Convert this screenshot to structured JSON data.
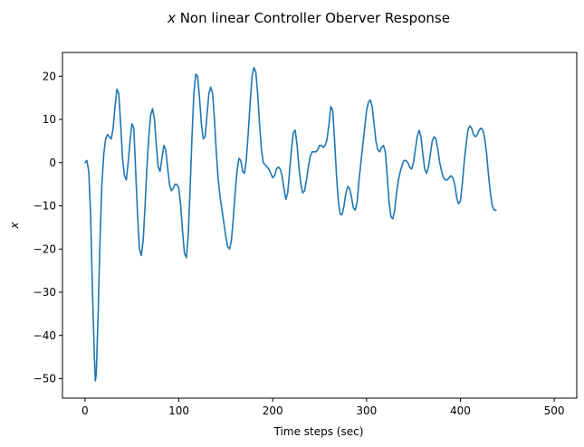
{
  "chart_data": {
    "type": "line",
    "title_var": "x",
    "title_rest": " Non linear Controller Oberver Response",
    "xlabel": "Time steps (sec)",
    "ylabel": "x",
    "xlim": [
      -24,
      524
    ],
    "ylim": [
      -54.5,
      25.5
    ],
    "xticks": [
      0,
      100,
      200,
      300,
      400,
      500
    ],
    "yticks": [
      -50,
      -40,
      -30,
      -20,
      -10,
      0,
      10,
      20
    ],
    "grid": false,
    "line_color": "#1f77b4",
    "series": [
      {
        "points": [
          [
            0,
            0
          ],
          [
            2,
            0.5
          ],
          [
            4,
            -2
          ],
          [
            6,
            -12
          ],
          [
            8,
            -30
          ],
          [
            10,
            -45
          ],
          [
            11,
            -50.5
          ],
          [
            12,
            -49
          ],
          [
            14,
            -35
          ],
          [
            16,
            -18
          ],
          [
            18,
            -5
          ],
          [
            20,
            2
          ],
          [
            22,
            5.5
          ],
          [
            24,
            6.5
          ],
          [
            26,
            6
          ],
          [
            28,
            5.5
          ],
          [
            30,
            8
          ],
          [
            32,
            13
          ],
          [
            34,
            17
          ],
          [
            36,
            16
          ],
          [
            38,
            9
          ],
          [
            40,
            1
          ],
          [
            42,
            -3
          ],
          [
            44,
            -4
          ],
          [
            46,
            0
          ],
          [
            48,
            5
          ],
          [
            50,
            9
          ],
          [
            52,
            8
          ],
          [
            54,
            -2
          ],
          [
            56,
            -12
          ],
          [
            58,
            -20
          ],
          [
            60,
            -21.5
          ],
          [
            62,
            -18
          ],
          [
            64,
            -10
          ],
          [
            66,
            -1
          ],
          [
            68,
            6
          ],
          [
            70,
            11
          ],
          [
            72,
            12.5
          ],
          [
            74,
            10
          ],
          [
            76,
            4
          ],
          [
            78,
            -1
          ],
          [
            80,
            -2
          ],
          [
            82,
            1
          ],
          [
            84,
            4
          ],
          [
            86,
            3
          ],
          [
            88,
            -1
          ],
          [
            90,
            -5
          ],
          [
            92,
            -6.5
          ],
          [
            94,
            -6
          ],
          [
            96,
            -5
          ],
          [
            98,
            -5
          ],
          [
            100,
            -6
          ],
          [
            102,
            -10
          ],
          [
            104,
            -16
          ],
          [
            106,
            -21
          ],
          [
            108,
            -22
          ],
          [
            110,
            -17
          ],
          [
            112,
            -6
          ],
          [
            114,
            6
          ],
          [
            116,
            16
          ],
          [
            118,
            20.5
          ],
          [
            120,
            20
          ],
          [
            122,
            15
          ],
          [
            124,
            9
          ],
          [
            126,
            5.5
          ],
          [
            128,
            6
          ],
          [
            130,
            11
          ],
          [
            132,
            16
          ],
          [
            134,
            17.5
          ],
          [
            136,
            16
          ],
          [
            138,
            10
          ],
          [
            140,
            2
          ],
          [
            142,
            -4
          ],
          [
            144,
            -8
          ],
          [
            146,
            -11
          ],
          [
            148,
            -14
          ],
          [
            150,
            -17
          ],
          [
            152,
            -19.5
          ],
          [
            154,
            -20
          ],
          [
            156,
            -18
          ],
          [
            158,
            -13
          ],
          [
            160,
            -7
          ],
          [
            162,
            -2
          ],
          [
            164,
            1
          ],
          [
            166,
            0.5
          ],
          [
            168,
            -2
          ],
          [
            170,
            -2.5
          ],
          [
            172,
            1
          ],
          [
            174,
            7
          ],
          [
            176,
            14
          ],
          [
            178,
            20
          ],
          [
            180,
            22
          ],
          [
            182,
            21
          ],
          [
            184,
            16
          ],
          [
            186,
            9
          ],
          [
            188,
            3
          ],
          [
            190,
            0
          ],
          [
            192,
            -0.5
          ],
          [
            194,
            -1
          ],
          [
            196,
            -1.5
          ],
          [
            198,
            -2.5
          ],
          [
            200,
            -3.5
          ],
          [
            202,
            -3
          ],
          [
            204,
            -1.5
          ],
          [
            206,
            -1
          ],
          [
            208,
            -1.5
          ],
          [
            210,
            -3
          ],
          [
            212,
            -6
          ],
          [
            214,
            -8.5
          ],
          [
            216,
            -7
          ],
          [
            218,
            -2
          ],
          [
            220,
            3
          ],
          [
            222,
            7
          ],
          [
            224,
            7.5
          ],
          [
            226,
            4
          ],
          [
            228,
            -1
          ],
          [
            230,
            -5
          ],
          [
            232,
            -7
          ],
          [
            234,
            -6.5
          ],
          [
            236,
            -4
          ],
          [
            238,
            -1
          ],
          [
            240,
            1.5
          ],
          [
            242,
            2.5
          ],
          [
            244,
            2.5
          ],
          [
            246,
            2.5
          ],
          [
            248,
            3
          ],
          [
            250,
            4
          ],
          [
            252,
            4
          ],
          [
            254,
            3.5
          ],
          [
            256,
            4
          ],
          [
            258,
            5.5
          ],
          [
            260,
            9
          ],
          [
            262,
            13
          ],
          [
            264,
            12
          ],
          [
            266,
            5
          ],
          [
            268,
            -3
          ],
          [
            270,
            -9
          ],
          [
            272,
            -12
          ],
          [
            274,
            -12
          ],
          [
            276,
            -10
          ],
          [
            278,
            -7
          ],
          [
            280,
            -5.5
          ],
          [
            282,
            -6
          ],
          [
            284,
            -8
          ],
          [
            286,
            -10.5
          ],
          [
            288,
            -11
          ],
          [
            290,
            -9
          ],
          [
            292,
            -4
          ],
          [
            294,
            0
          ],
          [
            296,
            4
          ],
          [
            298,
            8
          ],
          [
            300,
            12
          ],
          [
            302,
            14
          ],
          [
            304,
            14.5
          ],
          [
            306,
            13
          ],
          [
            308,
            9
          ],
          [
            310,
            5
          ],
          [
            312,
            3
          ],
          [
            314,
            2.5
          ],
          [
            316,
            3.5
          ],
          [
            318,
            4
          ],
          [
            320,
            2.5
          ],
          [
            322,
            -3
          ],
          [
            324,
            -9
          ],
          [
            326,
            -12.5
          ],
          [
            328,
            -13
          ],
          [
            330,
            -11
          ],
          [
            332,
            -7
          ],
          [
            334,
            -4
          ],
          [
            336,
            -2
          ],
          [
            338,
            -0.5
          ],
          [
            340,
            0.5
          ],
          [
            342,
            0.5
          ],
          [
            344,
            0
          ],
          [
            346,
            -1
          ],
          [
            348,
            -1.5
          ],
          [
            350,
            0
          ],
          [
            352,
            3
          ],
          [
            354,
            6
          ],
          [
            356,
            7.5
          ],
          [
            358,
            6
          ],
          [
            360,
            2
          ],
          [
            362,
            -1.5
          ],
          [
            364,
            -2.5
          ],
          [
            366,
            -1
          ],
          [
            368,
            2
          ],
          [
            370,
            5
          ],
          [
            372,
            6
          ],
          [
            374,
            5.5
          ],
          [
            376,
            3
          ],
          [
            378,
            0
          ],
          [
            380,
            -2
          ],
          [
            382,
            -3.5
          ],
          [
            384,
            -4
          ],
          [
            386,
            -4
          ],
          [
            388,
            -3.5
          ],
          [
            390,
            -3
          ],
          [
            392,
            -3.5
          ],
          [
            394,
            -5
          ],
          [
            396,
            -8
          ],
          [
            398,
            -9.5
          ],
          [
            400,
            -9
          ],
          [
            402,
            -5
          ],
          [
            404,
            0
          ],
          [
            406,
            4
          ],
          [
            408,
            7.5
          ],
          [
            410,
            8.5
          ],
          [
            412,
            8
          ],
          [
            414,
            6.5
          ],
          [
            416,
            6
          ],
          [
            418,
            6.5
          ],
          [
            420,
            7.5
          ],
          [
            422,
            8
          ],
          [
            424,
            7.5
          ],
          [
            426,
            5.5
          ],
          [
            428,
            2
          ],
          [
            430,
            -3
          ],
          [
            432,
            -7
          ],
          [
            434,
            -10
          ],
          [
            436,
            -11
          ],
          [
            438,
            -11
          ]
        ]
      }
    ]
  }
}
